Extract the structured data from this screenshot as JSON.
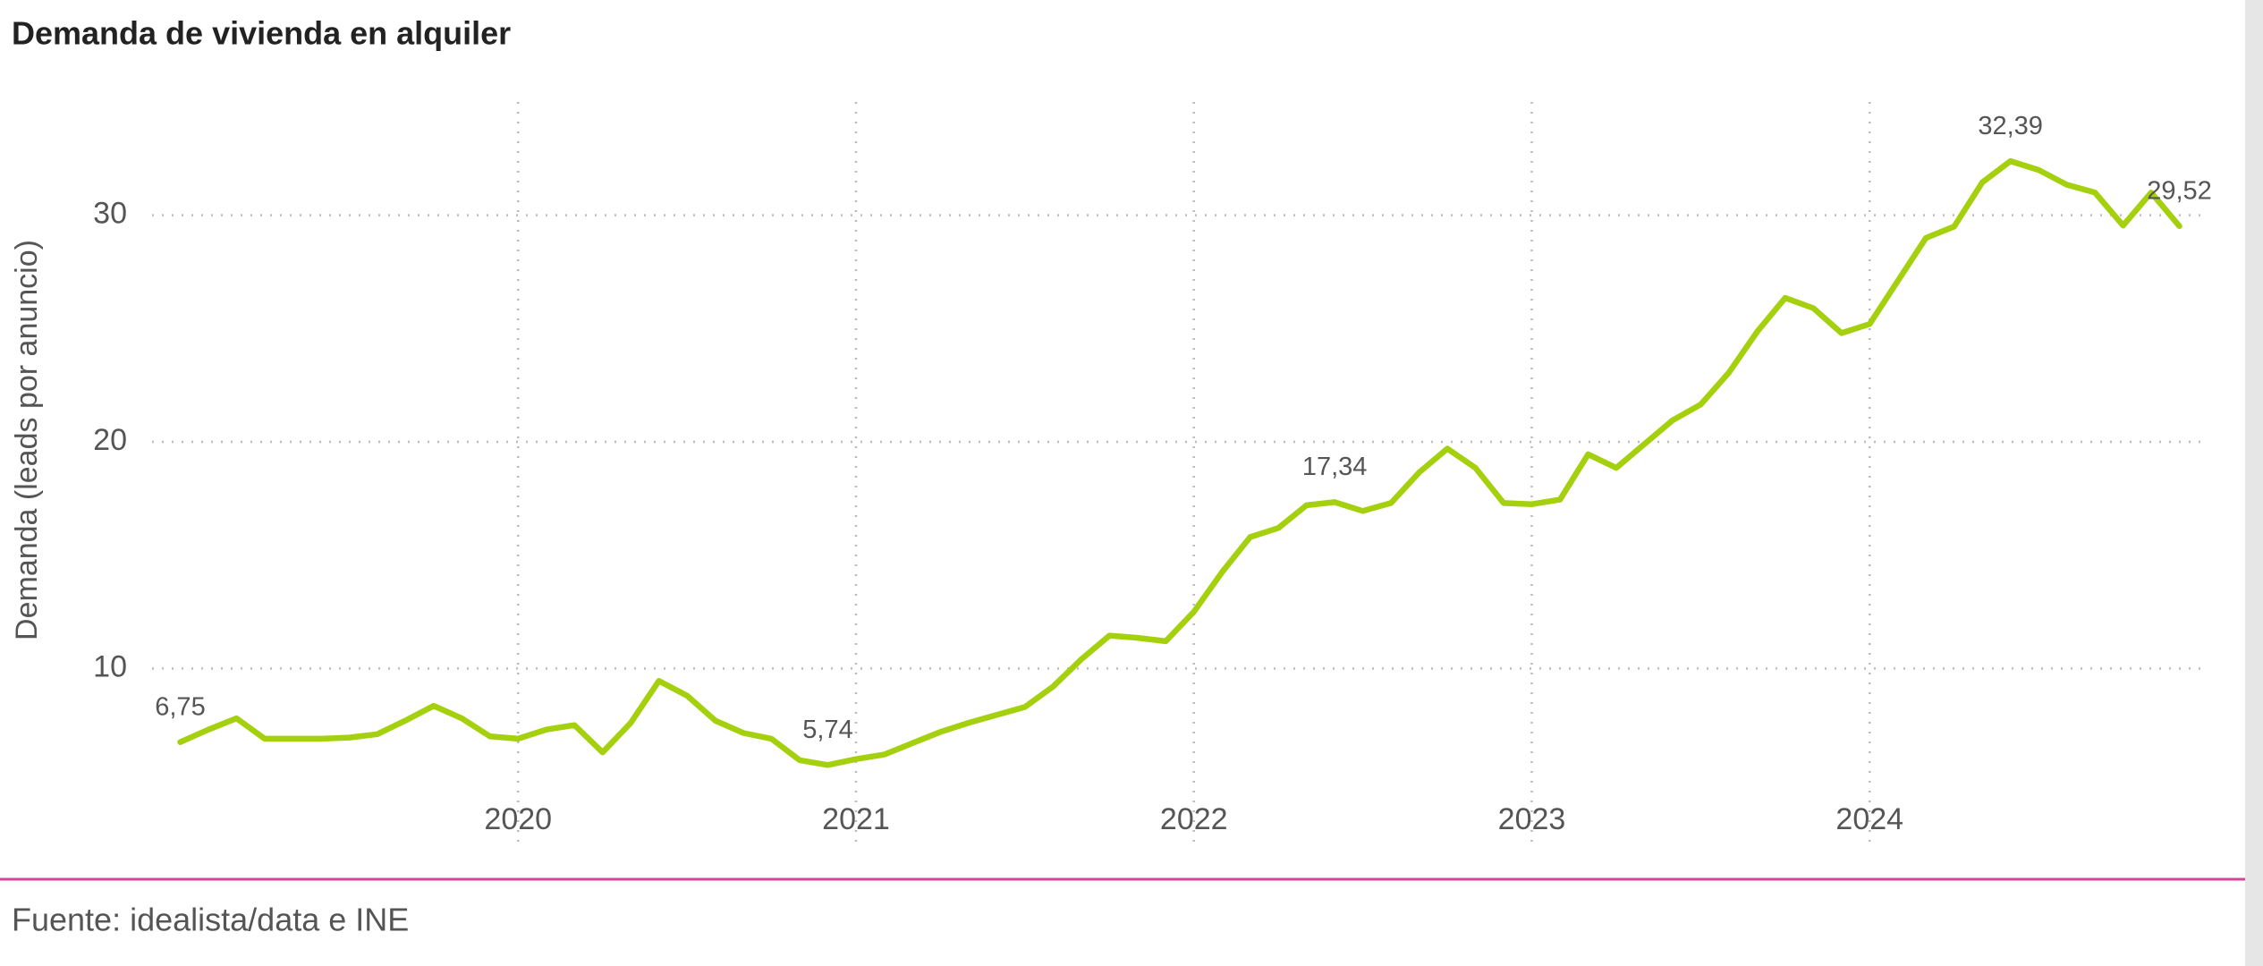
{
  "chart_data": {
    "type": "line",
    "title": "Demanda de vivienda en alquiler",
    "y_label": "Demanda (leads por anuncio)",
    "source": "Fuente: idealista/data e INE",
    "color": "#a4d00e",
    "grid": true,
    "x": [
      "2019-01",
      "2019-02",
      "2019-03",
      "2019-04",
      "2019-05",
      "2019-06",
      "2019-07",
      "2019-08",
      "2019-09",
      "2019-10",
      "2019-11",
      "2019-12",
      "2020-01",
      "2020-02",
      "2020-03",
      "2020-04",
      "2020-05",
      "2020-06",
      "2020-07",
      "2020-08",
      "2020-09",
      "2020-10",
      "2020-11",
      "2020-12",
      "2021-01",
      "2021-02",
      "2021-03",
      "2021-04",
      "2021-05",
      "2021-06",
      "2021-07",
      "2021-08",
      "2021-09",
      "2021-10",
      "2021-11",
      "2021-12",
      "2022-01",
      "2022-02",
      "2022-03",
      "2022-04",
      "2022-05",
      "2022-06",
      "2022-07",
      "2022-08",
      "2022-09",
      "2022-10",
      "2022-11",
      "2022-12",
      "2023-01",
      "2023-02",
      "2023-03",
      "2023-04",
      "2023-05",
      "2023-06",
      "2023-07",
      "2023-08",
      "2023-09",
      "2023-10",
      "2023-11",
      "2023-12",
      "2024-01",
      "2024-02",
      "2024-03",
      "2024-04",
      "2024-05",
      "2024-06",
      "2024-07",
      "2024-08",
      "2024-09",
      "2024-10",
      "2024-11",
      "2024-12"
    ],
    "values": [
      6.75,
      7.3,
      7.8,
      6.9,
      6.9,
      6.9,
      6.95,
      7.1,
      7.7,
      8.35,
      7.8,
      7.0,
      6.9,
      7.3,
      7.5,
      6.3,
      7.6,
      9.45,
      8.8,
      7.7,
      7.15,
      6.9,
      5.95,
      5.74,
      6.0,
      6.2,
      6.7,
      7.2,
      7.6,
      7.95,
      8.3,
      9.2,
      10.4,
      11.45,
      11.35,
      11.2,
      12.5,
      14.25,
      15.8,
      16.2,
      17.2,
      17.34,
      16.95,
      17.3,
      18.65,
      19.7,
      18.85,
      17.3,
      17.25,
      17.45,
      19.45,
      18.85,
      19.9,
      20.95,
      21.65,
      23.05,
      24.85,
      26.35,
      25.9,
      24.8,
      25.2,
      27.1,
      29.0,
      29.5,
      31.45,
      32.39,
      32.0,
      31.35,
      31.0,
      29.55,
      31.0,
      29.52
    ],
    "value_labels": [
      "6,75",
      null,
      null,
      null,
      null,
      null,
      null,
      null,
      null,
      null,
      null,
      null,
      null,
      null,
      null,
      null,
      null,
      null,
      null,
      null,
      null,
      null,
      null,
      "5,74",
      null,
      null,
      null,
      null,
      null,
      null,
      null,
      null,
      null,
      null,
      null,
      null,
      null,
      null,
      null,
      null,
      null,
      "17,34",
      null,
      null,
      null,
      null,
      null,
      null,
      null,
      null,
      null,
      null,
      null,
      null,
      null,
      null,
      null,
      null,
      null,
      null,
      null,
      null,
      null,
      null,
      null,
      "32,39",
      null,
      null,
      null,
      null,
      null,
      "29,52"
    ],
    "xlim": [
      "2018-12",
      "2025-01"
    ],
    "xticks": [
      {
        "value": "2020-01",
        "label": "2020"
      },
      {
        "value": "2021-01",
        "label": "2021"
      },
      {
        "value": "2022-01",
        "label": "2022"
      },
      {
        "value": "2023-01",
        "label": "2023"
      },
      {
        "value": "2024-01",
        "label": "2024"
      }
    ],
    "ylim": [
      2,
      35
    ],
    "yticks": [
      10,
      20,
      30
    ]
  }
}
